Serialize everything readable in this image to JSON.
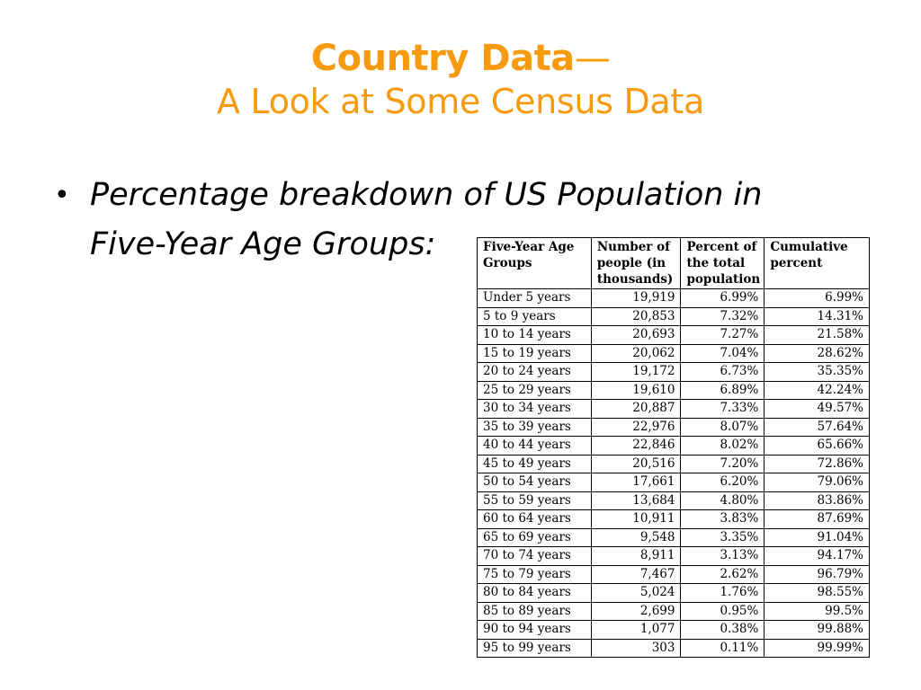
{
  "title": {
    "line1": "Country Data",
    "dash": "—",
    "line2": "A Look at Some Census Data"
  },
  "bullet": {
    "symbol": "•",
    "text": "Percentage breakdown of US Population in Five-Year Age Groups:"
  },
  "table": {
    "headers": [
      "Five-Year Age Groups",
      "Number of people (in thousands)",
      "Percent of the total population",
      "Cumulative percent"
    ],
    "rows": [
      [
        "Under 5 years",
        "19,919",
        "6.99%",
        "6.99%"
      ],
      [
        "5 to 9 years",
        "20,853",
        "7.32%",
        "14.31%"
      ],
      [
        "10 to 14 years",
        "20,693",
        "7.27%",
        "21.58%"
      ],
      [
        "15 to 19 years",
        "20,062",
        "7.04%",
        "28.62%"
      ],
      [
        "20 to 24 years",
        "19,172",
        "6.73%",
        "35.35%"
      ],
      [
        "25 to 29 years",
        "19,610",
        "6.89%",
        "42.24%"
      ],
      [
        "30 to 34 years",
        "20,887",
        "7.33%",
        "49.57%"
      ],
      [
        "35 to 39 years",
        "22,976",
        "8.07%",
        "57.64%"
      ],
      [
        "40 to 44 years",
        "22,846",
        "8.02%",
        "65.66%"
      ],
      [
        "45 to 49 years",
        "20,516",
        "7.20%",
        "72.86%"
      ],
      [
        "50 to 54 years",
        "17,661",
        "6.20%",
        "79.06%"
      ],
      [
        "55 to 59 years",
        "13,684",
        "4.80%",
        "83.86%"
      ],
      [
        "60 to 64 years",
        "10,911",
        "3.83%",
        "87.69%"
      ],
      [
        "65 to 69 years",
        "9,548",
        "3.35%",
        "91.04%"
      ],
      [
        "70 to 74 years",
        "8,911",
        "3.13%",
        "94.17%"
      ],
      [
        "75 to 79 years",
        "7,467",
        "2.62%",
        "96.79%"
      ],
      [
        "80 to 84 years",
        "5,024",
        "1.76%",
        "98.55%"
      ],
      [
        "85 to 89 years",
        "2,699",
        "0.95%",
        "99.5%"
      ],
      [
        "90 to 94 years",
        "1,077",
        "0.38%",
        "99.88%"
      ],
      [
        "95 to 99 years",
        "303",
        "0.11%",
        "99.99%"
      ]
    ]
  },
  "colors": {
    "title": "#f79a0e",
    "text": "#000000",
    "background": "#ffffff"
  }
}
